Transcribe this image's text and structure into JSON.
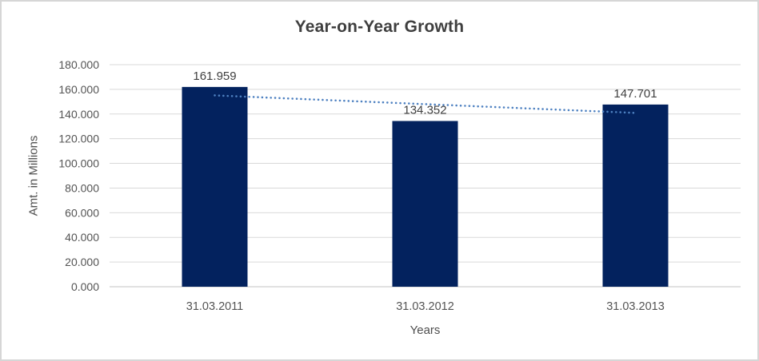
{
  "chart_data": {
    "type": "bar",
    "title": "Year-on-Year Growth",
    "xlabel": "Years",
    "ylabel": "Amt. in Millions",
    "categories": [
      "31.03.2011",
      "31.03.2012",
      "31.03.2013"
    ],
    "values": [
      161.959,
      134.352,
      147.701
    ],
    "data_labels": [
      "161.959",
      "134.352",
      "147.701"
    ],
    "ylim": [
      0,
      180
    ],
    "ytick_step": 20,
    "ytick_labels": [
      "0.000",
      "20.000",
      "40.000",
      "60.000",
      "80.000",
      "100.000",
      "120.000",
      "140.000",
      "160.000",
      "180.000"
    ],
    "grid": "horizontal-on",
    "legend": "none",
    "colors": {
      "bar": "#03225E",
      "trendline": "#4E81C1",
      "gridline": "#D9D9D9",
      "axis_line": "#C3C3C3",
      "title_text": "#3F3F3F",
      "tick_text": "#545454"
    },
    "trendline": {
      "type": "linear",
      "style": "dotted",
      "fit_values": [
        155.1,
        148.0,
        140.9
      ]
    }
  }
}
